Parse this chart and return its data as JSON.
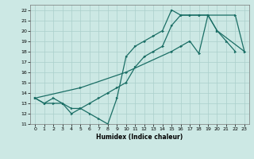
{
  "line1_x": [
    0,
    1,
    2,
    3,
    4,
    5,
    6,
    7,
    8,
    9,
    10,
    11,
    12,
    13,
    14,
    15,
    16,
    17,
    18,
    19,
    20,
    21,
    22
  ],
  "line1_y": [
    13.5,
    13.0,
    13.0,
    13.0,
    12.0,
    12.5,
    12.0,
    11.5,
    11.0,
    13.5,
    17.5,
    18.5,
    19.0,
    19.5,
    20.0,
    22.0,
    21.5,
    21.5,
    21.5,
    21.5,
    20.0,
    19.0,
    18.0
  ],
  "line2_x": [
    0,
    1,
    2,
    3,
    4,
    5,
    6,
    7,
    8,
    9,
    10,
    11,
    12,
    13,
    14,
    15,
    16,
    17,
    18,
    19,
    20,
    23
  ],
  "line2_y": [
    13.5,
    13.0,
    13.5,
    13.0,
    12.5,
    12.5,
    13.0,
    13.5,
    14.0,
    14.5,
    15.0,
    16.5,
    17.5,
    18.0,
    18.5,
    20.5,
    21.5,
    21.5,
    21.5,
    21.5,
    20.0,
    18.0
  ],
  "line3_x": [
    0,
    5,
    10,
    15,
    16,
    17,
    18,
    19,
    22,
    23
  ],
  "line3_y": [
    13.5,
    14.5,
    16.0,
    18.0,
    18.5,
    19.0,
    17.8,
    21.5,
    21.5,
    18.0
  ],
  "bg_color": "#cce8e4",
  "line_color": "#1a6e65",
  "grid_color": "#aacfcb",
  "xlabel": "Humidex (Indice chaleur)",
  "ylim": [
    11,
    22.5
  ],
  "xlim": [
    -0.5,
    23.5
  ],
  "yticks": [
    11,
    12,
    13,
    14,
    15,
    16,
    17,
    18,
    19,
    20,
    21,
    22
  ],
  "xticks": [
    0,
    1,
    2,
    3,
    4,
    5,
    6,
    7,
    8,
    9,
    10,
    11,
    12,
    13,
    14,
    15,
    16,
    17,
    18,
    19,
    20,
    21,
    22,
    23
  ]
}
